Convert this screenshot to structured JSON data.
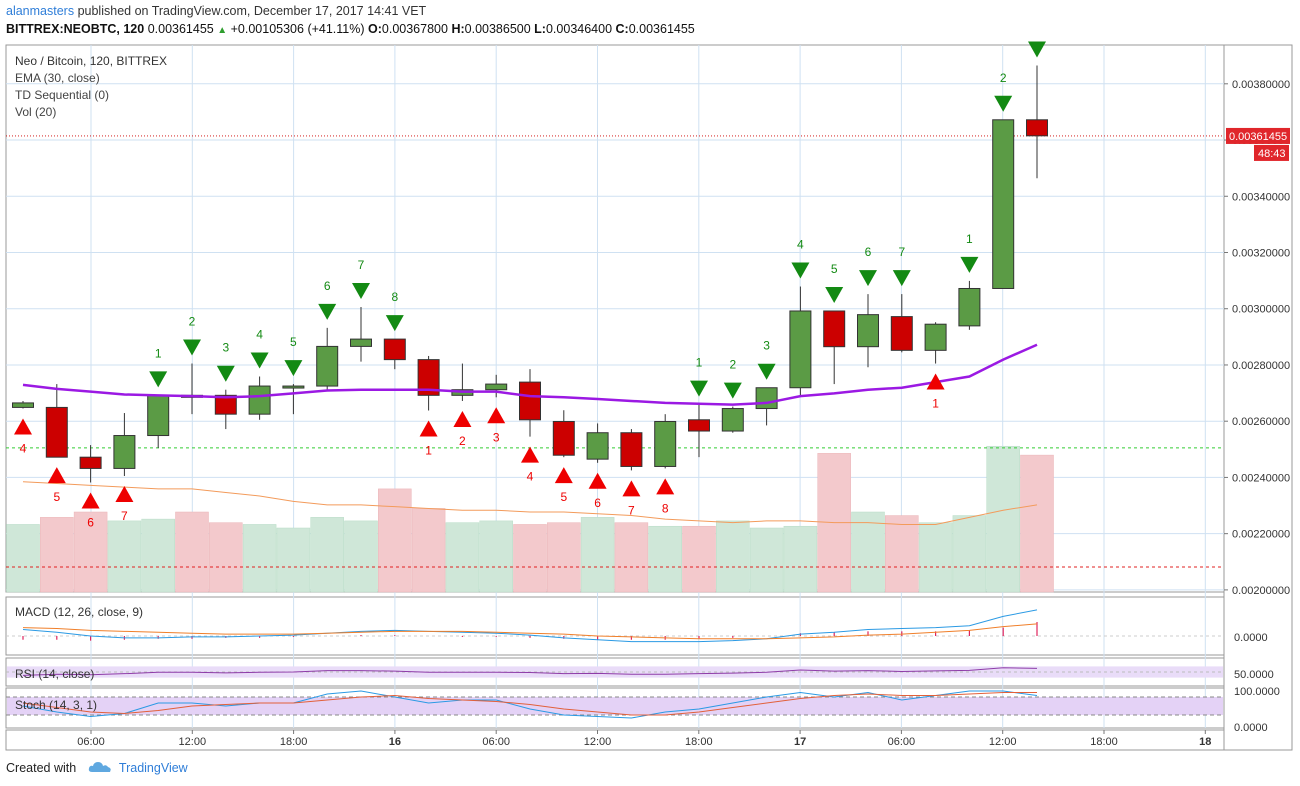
{
  "header": {
    "user": "alanmasters",
    "published": "published on TradingView.com, December 17, 2017 14:41 VET",
    "symbol": "BITTREX:NEOBTC, 120",
    "last": "0.00361455",
    "change": "+0.00105306 (+41.11%)",
    "o_label": "O:",
    "o": "0.00367800",
    "h_label": "H:",
    "h": "0.00386500",
    "l_label": "L:",
    "l": "0.00346400",
    "c_label": "C:",
    "c": "0.00361455"
  },
  "legend": [
    "Neo / Bitcoin, 120, BITTREX",
    "EMA (30, close)",
    "TD Sequential (0)",
    "Vol (20)"
  ],
  "footer": {
    "created": "Created with",
    "brand": "TradingView"
  },
  "colors": {
    "up": "#5b9b45",
    "down": "#cc0000",
    "ema": "#9b19e3",
    "sig_up": "#138a13",
    "sig_down": "#ee0000",
    "grid": "#cfe1f2",
    "last_price_bg": "#e0262b"
  },
  "chart_data": {
    "type": "candlestick",
    "title": "Neo / Bitcoin, 120, BITTREX",
    "interval": "120",
    "price_axis": {
      "ticks": [
        "0.00200000",
        "0.00220000",
        "0.00240000",
        "0.00260000",
        "0.00280000",
        "0.00300000",
        "0.00320000",
        "0.00340000",
        "0.00360000",
        "0.00380000"
      ],
      "range": [
        0.0019925,
        0.003938
      ]
    },
    "x_ticks": [
      "06:00",
      "12:00",
      "18:00",
      "16",
      "06:00",
      "12:00",
      "18:00",
      "17",
      "06:00",
      "12:00",
      "18:00",
      "18"
    ],
    "last_price_label": "0.00361455",
    "countdown_label": "48:43",
    "support_level": 0.002505,
    "candles": [
      {
        "o": 0.002649,
        "h": 0.002672,
        "l": 0.002645,
        "c": 0.002665
      },
      {
        "o": 0.002649,
        "h": 0.002732,
        "l": 0.002472,
        "c": 0.002472
      },
      {
        "o": 0.002472,
        "h": 0.002515,
        "l": 0.002382,
        "c": 0.002432
      },
      {
        "o": 0.002432,
        "h": 0.002629,
        "l": 0.002405,
        "c": 0.002549
      },
      {
        "o": 0.002549,
        "h": 0.002692,
        "l": 0.002505,
        "c": 0.002692
      },
      {
        "o": 0.002692,
        "h": 0.002805,
        "l": 0.002625,
        "c": 0.002685
      },
      {
        "o": 0.002692,
        "h": 0.002712,
        "l": 0.002572,
        "c": 0.002625
      },
      {
        "o": 0.002625,
        "h": 0.002759,
        "l": 0.002605,
        "c": 0.002725
      },
      {
        "o": 0.002719,
        "h": 0.002732,
        "l": 0.002625,
        "c": 0.002725
      },
      {
        "o": 0.002725,
        "h": 0.002932,
        "l": 0.002712,
        "c": 0.002866
      },
      {
        "o": 0.002866,
        "h": 0.003006,
        "l": 0.002812,
        "c": 0.002892
      },
      {
        "o": 0.002892,
        "h": 0.002892,
        "l": 0.002785,
        "c": 0.002819
      },
      {
        "o": 0.002819,
        "h": 0.002832,
        "l": 0.002638,
        "c": 0.002692
      },
      {
        "o": 0.002692,
        "h": 0.002805,
        "l": 0.002672,
        "c": 0.002712
      },
      {
        "o": 0.002712,
        "h": 0.002765,
        "l": 0.002685,
        "c": 0.002732
      },
      {
        "o": 0.002739,
        "h": 0.002785,
        "l": 0.002545,
        "c": 0.002605
      },
      {
        "o": 0.002599,
        "h": 0.002639,
        "l": 0.002472,
        "c": 0.002479
      },
      {
        "o": 0.002465,
        "h": 0.002592,
        "l": 0.002452,
        "c": 0.002559
      },
      {
        "o": 0.002559,
        "h": 0.002572,
        "l": 0.002425,
        "c": 0.002439
      },
      {
        "o": 0.002439,
        "h": 0.002625,
        "l": 0.002432,
        "c": 0.002599
      },
      {
        "o": 0.002605,
        "h": 0.002659,
        "l": 0.002472,
        "c": 0.002565
      },
      {
        "o": 0.002565,
        "h": 0.002652,
        "l": 0.002559,
        "c": 0.002645
      },
      {
        "o": 0.002645,
        "h": 0.002719,
        "l": 0.002585,
        "c": 0.002719
      },
      {
        "o": 0.002719,
        "h": 0.003079,
        "l": 0.002692,
        "c": 0.002992
      },
      {
        "o": 0.002992,
        "h": 0.002992,
        "l": 0.002732,
        "c": 0.002865
      },
      {
        "o": 0.002865,
        "h": 0.003052,
        "l": 0.002792,
        "c": 0.002979
      },
      {
        "o": 0.002972,
        "h": 0.003052,
        "l": 0.002845,
        "c": 0.002852
      },
      {
        "o": 0.002852,
        "h": 0.002952,
        "l": 0.002805,
        "c": 0.002945
      },
      {
        "o": 0.002939,
        "h": 0.003099,
        "l": 0.002925,
        "c": 0.003072
      },
      {
        "o": 0.003072,
        "h": 0.003672,
        "l": 0.003072,
        "c": 0.003672
      },
      {
        "o": 0.003672,
        "h": 0.003865,
        "l": 0.003464,
        "c": 0.003615
      }
    ],
    "ema": [
      0.002729,
      0.002715,
      0.002705,
      0.002695,
      0.002692,
      0.002689,
      0.002685,
      0.002689,
      0.002699,
      0.002709,
      0.002712,
      0.002712,
      0.002712,
      0.002705,
      0.002705,
      0.002689,
      0.002685,
      0.002679,
      0.002672,
      0.002665,
      0.002662,
      0.002659,
      0.002665,
      0.002689,
      0.002699,
      0.002712,
      0.002719,
      0.002739,
      0.002759,
      0.002819,
      0.002872
    ],
    "volume": [
      38,
      42,
      45,
      40,
      41,
      45,
      39,
      38,
      36,
      42,
      40,
      58,
      47,
      39,
      40,
      38,
      39,
      42,
      39,
      37,
      37,
      40,
      36,
      37,
      78,
      45,
      43,
      39,
      43,
      82,
      77
    ],
    "volume_ma": [
      62,
      61,
      60,
      59,
      58,
      58,
      56,
      54,
      51,
      49,
      49,
      48,
      47,
      46,
      46,
      45,
      45,
      44,
      43,
      41,
      40,
      39,
      40,
      40,
      39,
      39,
      38,
      38,
      42,
      46,
      49
    ],
    "td_sell_marks": [
      {
        "i": 4,
        "label": "1"
      },
      {
        "i": 5,
        "label": "2"
      },
      {
        "i": 6,
        "label": "3"
      },
      {
        "i": 7,
        "label": "4"
      },
      {
        "i": 8,
        "label": "5"
      },
      {
        "i": 9,
        "label": "6"
      },
      {
        "i": 10,
        "label": "7"
      },
      {
        "i": 11,
        "label": "8"
      },
      {
        "i": 20,
        "label": "1"
      },
      {
        "i": 21,
        "label": "2"
      },
      {
        "i": 22,
        "label": "3"
      },
      {
        "i": 23,
        "label": "4"
      },
      {
        "i": 24,
        "label": "5"
      },
      {
        "i": 25,
        "label": "6"
      },
      {
        "i": 26,
        "label": "7"
      },
      {
        "i": 28,
        "label": "1"
      },
      {
        "i": 29,
        "label": "2"
      },
      {
        "i": 30,
        "label": ""
      }
    ],
    "td_buy_marks": [
      {
        "i": 0,
        "label": "4"
      },
      {
        "i": 1,
        "label": "5"
      },
      {
        "i": 2,
        "label": "6"
      },
      {
        "i": 3,
        "label": "7"
      },
      {
        "i": 12,
        "label": "1"
      },
      {
        "i": 13,
        "label": "2"
      },
      {
        "i": 14,
        "label": "3"
      },
      {
        "i": 15,
        "label": "4"
      },
      {
        "i": 16,
        "label": "5"
      },
      {
        "i": 17,
        "label": "6"
      },
      {
        "i": 18,
        "label": "7"
      },
      {
        "i": 19,
        "label": "8"
      },
      {
        "i": 27,
        "label": "1"
      }
    ],
    "macd": {
      "label": "MACD (12, 26, close, 9)",
      "tick": "0.0000",
      "macd": [
        7e-05,
        4e-05,
        0.0,
        -2e-05,
        -2e-05,
        -1e-05,
        -1e-05,
        0,
        1e-05,
        3e-05,
        5e-05,
        6e-05,
        5e-05,
        4e-05,
        3e-05,
        1e-05,
        -2e-05,
        -4e-05,
        -6e-05,
        -6e-05,
        -6e-05,
        -5e-05,
        -3e-05,
        2e-05,
        4e-05,
        7e-05,
        8e-05,
        9e-05,
        0.00011,
        0.00021,
        0.00028
      ],
      "signal": [
        9e-05,
        8e-05,
        6e-05,
        5e-05,
        4e-05,
        3e-05,
        2e-05,
        2e-05,
        2e-05,
        3e-05,
        4e-05,
        5e-05,
        5e-05,
        5e-05,
        4e-05,
        3e-05,
        2e-05,
        0.0,
        -1e-05,
        -2e-05,
        -3e-05,
        -3e-05,
        -3e-05,
        -2e-05,
        -1e-05,
        1e-05,
        2e-05,
        4e-05,
        6e-05,
        0.0001,
        0.00013
      ],
      "hist": [
        -4e-05,
        -4e-05,
        -5e-05,
        -4e-05,
        -3e-05,
        -3e-05,
        -2e-05,
        -2e-05,
        -1e-05,
        0,
        1e-05,
        1e-05,
        0,
        -1e-05,
        -1e-05,
        -2e-05,
        -3e-05,
        -4e-05,
        -4e-05,
        -4e-05,
        -3e-05,
        -2e-05,
        0,
        3e-05,
        4e-05,
        5e-05,
        5e-05,
        5e-05,
        6e-05,
        9e-05,
        0.00015
      ]
    },
    "rsi": {
      "label": "RSI (14, close)",
      "tick": "50.0000",
      "band": [
        30,
        70
      ],
      "values": [
        38,
        42,
        40,
        44,
        49,
        49,
        47,
        49,
        50,
        55,
        55,
        53,
        49,
        49,
        49,
        48,
        44,
        45,
        42,
        42,
        44,
        46,
        49,
        57,
        53,
        55,
        52,
        54,
        56,
        65,
        63
      ]
    },
    "stoch": {
      "label": "Stoch (14, 3, 1)",
      "ticks": [
        "100.0000",
        "0.0000"
      ],
      "bands": [
        80,
        20
      ],
      "k": [
        50,
        30,
        15,
        25,
        60,
        60,
        50,
        60,
        60,
        90,
        100,
        80,
        60,
        70,
        70,
        40,
        20,
        15,
        10,
        30,
        40,
        60,
        80,
        95,
        80,
        95,
        70,
        85,
        100,
        100,
        85
      ],
      "d": [
        60,
        45,
        30,
        25,
        35,
        50,
        55,
        60,
        60,
        70,
        80,
        85,
        75,
        70,
        65,
        55,
        40,
        30,
        20,
        20,
        30,
        45,
        60,
        75,
        85,
        90,
        85,
        85,
        90,
        95,
        95
      ]
    }
  }
}
